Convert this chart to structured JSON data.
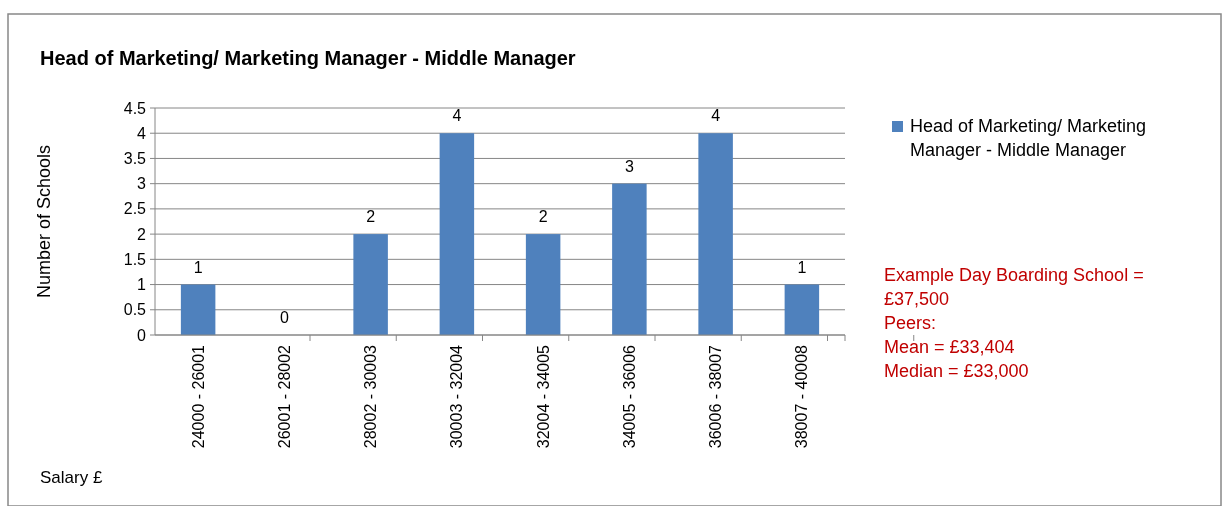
{
  "chart_data": {
    "type": "bar",
    "title": "Head of Marketing/ Marketing Manager - Middle Manager",
    "xlabel": "Salary £",
    "ylabel": "Number of Schools",
    "categories": [
      "24000 - 26001",
      "26001 - 28002",
      "28002 - 30003",
      "30003 - 32004",
      "32004 - 34005",
      "34005 - 36006",
      "36006 - 38007",
      "38007 - 40008"
    ],
    "series": [
      {
        "name": "Head of Marketing/ Marketing Manager - Middle Manager",
        "color": "#4f81bd",
        "values": [
          1,
          0,
          2,
          4,
          2,
          3,
          4,
          1
        ]
      }
    ],
    "ylim": [
      0,
      4.5
    ],
    "yticks": [
      0,
      0.5,
      1,
      1.5,
      2,
      2.5,
      3,
      3.5,
      4,
      4.5
    ],
    "grid": "y",
    "legend": "right",
    "data_labels": true,
    "annotations": [
      "Example Day Boarding School = £37,500",
      "Peers:",
      "Mean = £33,404",
      "Median = £33,000"
    ]
  }
}
